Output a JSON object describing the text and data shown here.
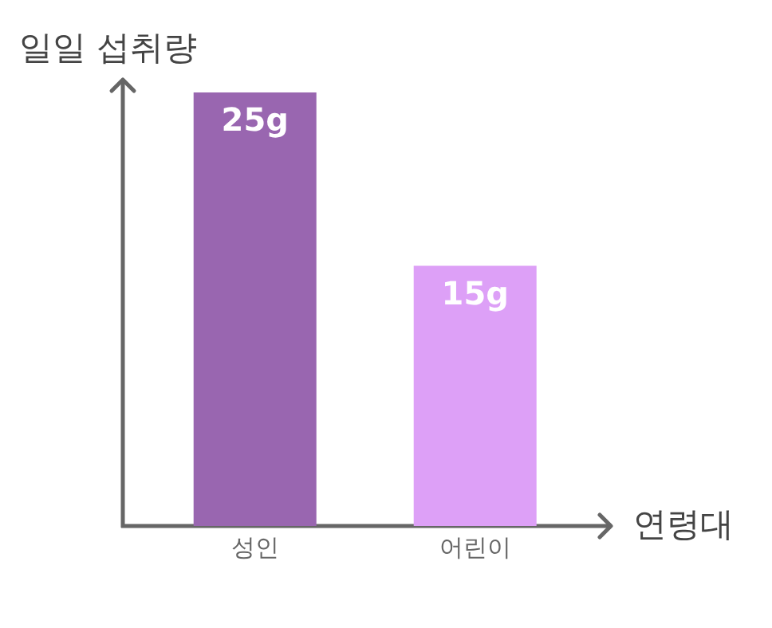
{
  "chart_data": {
    "type": "bar",
    "ylabel": "일일 섭취량",
    "xlabel": "연령대",
    "categories": [
      "성인",
      "어린이"
    ],
    "values": [
      25,
      15
    ],
    "value_labels": [
      "25g",
      "15g"
    ],
    "colors": [
      "#9966b0",
      "#dda0f7"
    ],
    "ylim": [
      0,
      25
    ],
    "tick_labels": "x"
  }
}
